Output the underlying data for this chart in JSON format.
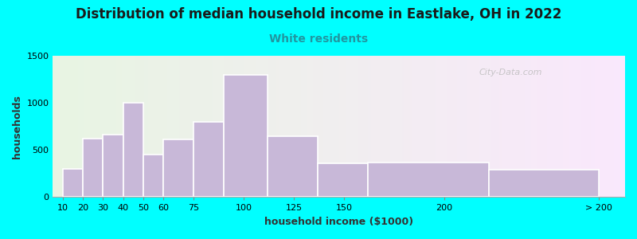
{
  "title": "Distribution of median household income in Eastlake, OH in 2022",
  "subtitle": "White residents",
  "xlabel": "household income ($1000)",
  "ylabel": "households",
  "background_color": "#00FFFF",
  "bar_color": "#c8b8d8",
  "bar_edge_color": "#ffffff",
  "title_fontsize": 12,
  "subtitle_fontsize": 10,
  "subtitle_color": "#2196a0",
  "values": [
    300,
    620,
    660,
    1000,
    450,
    610,
    800,
    1300,
    650,
    360,
    370,
    290
  ],
  "lefts": [
    10,
    20,
    30,
    40,
    50,
    60,
    75,
    90,
    112,
    137,
    162,
    222
  ],
  "widths": [
    10,
    10,
    10,
    10,
    10,
    15,
    15,
    22,
    25,
    25,
    60,
    55
  ],
  "ylim": [
    0,
    1500
  ],
  "yticks": [
    0,
    500,
    1000,
    1500
  ],
  "xtick_positions": [
    10,
    20,
    30,
    40,
    50,
    60,
    75,
    100,
    125,
    150,
    200,
    277
  ],
  "xtick_labels": [
    "10",
    "20",
    "30",
    "40",
    "50",
    "60",
    "75",
    "100",
    "125",
    "150",
    "200",
    "> 200"
  ],
  "watermark": "City-Data.com",
  "xlim": [
    5,
    290
  ]
}
